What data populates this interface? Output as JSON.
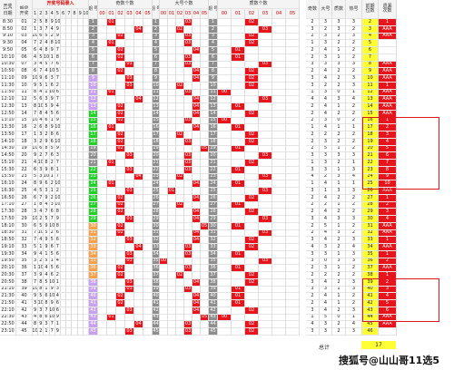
{
  "header": {
    "time_label": "开奖\n时间",
    "period_label": "期号",
    "import_label": "开奖号码录入",
    "col_period": "期\n号",
    "odd_group": "奇数个数",
    "big_group": "大号个数",
    "prime_group": "质数个数",
    "stat_odd": "奇数",
    "stat_big": "大号",
    "stat_prime": "质数",
    "stat_heat": "热号",
    "stat_prev": "前期\n位数",
    "stat_gap": "遗漏\n次数",
    "slot_labels": [
      "00",
      "01",
      "02",
      "03",
      "04",
      "05"
    ],
    "date_label": "日期",
    "date_value": "开奖"
  },
  "rows": [
    {
      "time": "8:30",
      "p": "01",
      "n": [
        2,
        5,
        8,
        9,
        10
      ],
      "per": "1",
      "odd": "01",
      "big": "03",
      "prime": "02",
      "s": [
        2,
        3,
        3,
        3,
        322
      ],
      "last": "2",
      "code": "1"
    },
    {
      "time": "8:50",
      "p": "02",
      "n": [
        1,
        3,
        7,
        4,
        9
      ],
      "per": "2",
      "odd": "04",
      "big": "02",
      "prime": "03",
      "s": [
        3,
        2,
        3,
        2,
        233
      ],
      "last": "3",
      "code": "AAA"
    },
    {
      "time": "9:10",
      "p": "03",
      "n": [
        10,
        6,
        5,
        2,
        9
      ],
      "per": "3",
      "odd": "02",
      "big": "03",
      "prime": "02",
      "s": [
        2,
        3,
        2,
        3,
        323
      ],
      "last": "4",
      "code": "AAA"
    },
    {
      "time": "9:30",
      "p": "04",
      "n": [
        7,
        2,
        4,
        8,
        10
      ],
      "per": "4",
      "odd": "01",
      "big": "03",
      "prime": "02",
      "s": [
        1,
        3,
        2,
        2,
        132
      ],
      "last": "5",
      "code": ""
    },
    {
      "time": "9:50",
      "p": "05",
      "n": [
        6,
        4,
        8,
        9,
        7
      ],
      "per": "5",
      "odd": "02",
      "big": "04",
      "prime": "01",
      "s": [
        2,
        4,
        1,
        2,
        241
      ],
      "last": "6",
      "code": ""
    },
    {
      "time": "10:10",
      "p": "06",
      "n": [
        4,
        5,
        10,
        1,
        8
      ],
      "per": "6",
      "odd": "02",
      "big": "03",
      "prime": "01",
      "s": [
        2,
        3,
        1,
        2,
        231
      ],
      "last": "7",
      "code": ""
    },
    {
      "time": "10:30",
      "p": "07",
      "n": [
        3,
        4,
        5,
        7,
        6
      ],
      "per": "7",
      "odd": "03",
      "big": "03",
      "prime": "03",
      "s": [
        3,
        3,
        3,
        3,
        333
      ],
      "last": "8",
      "code": "AAA"
    },
    {
      "time": "10:50",
      "p": "08",
      "n": [
        6,
        7,
        4,
        10,
        5
      ],
      "per": "8",
      "odd": "02",
      "big": "04",
      "prime": "02",
      "s": [
        2,
        4,
        2,
        2,
        242
      ],
      "last": "9",
      "code": "AAA"
    },
    {
      "time": "11:10",
      "p": "09",
      "n": [
        10,
        9,
        6,
        3,
        7
      ],
      "per": "9",
      "odd": "03",
      "big": "04",
      "prime": "02",
      "s": [
        3,
        4,
        2,
        3,
        342
      ],
      "last": "10",
      "code": "AAA"
    },
    {
      "time": "11:30",
      "p": "10",
      "n": [
        9,
        5,
        1,
        6,
        2
      ],
      "per": "10",
      "odd": "03",
      "big": "02",
      "prime": "02",
      "s": [
        3,
        2,
        2,
        3,
        322
      ],
      "last": "11",
      "code": "1"
    },
    {
      "time": "11:50",
      "p": "11",
      "n": [
        8,
        4,
        1,
        10,
        6
      ],
      "per": "11",
      "odd": "01",
      "big": "03",
      "prime": "00",
      "s": [
        1,
        3,
        0,
        1,
        130
      ],
      "last": "12",
      "code": "AAA"
    },
    {
      "time": "12:10",
      "p": "12",
      "n": [
        5,
        6,
        3,
        9,
        7
      ],
      "per": "12",
      "odd": "04",
      "big": "04",
      "prime": "03",
      "s": [
        4,
        4,
        3,
        4,
        443
      ],
      "last": "13",
      "code": "AAA"
    },
    {
      "time": "12:30",
      "p": "13",
      "n": [
        8,
        10,
        5,
        9,
        4
      ],
      "per": "13",
      "odd": "02",
      "big": "04",
      "prime": "01",
      "s": [
        2,
        4,
        1,
        2,
        241
      ],
      "last": "14",
      "code": "AAA"
    },
    {
      "time": "12:50",
      "p": "14",
      "n": [
        7,
        8,
        4,
        5,
        6
      ],
      "per": "14",
      "odd": "02",
      "big": "04",
      "prime": "02",
      "s": [
        2,
        4,
        2,
        2,
        242
      ],
      "last": "15",
      "code": "AAA"
    },
    {
      "time": "13:10",
      "p": "15",
      "n": [
        10,
        4,
        6,
        1,
        9
      ],
      "per": "15",
      "odd": "02",
      "big": "03",
      "prime": "00",
      "s": [
        2,
        3,
        0,
        2,
        230
      ],
      "last": "16",
      "code": "1"
    },
    {
      "time": "13:30",
      "p": "16",
      "n": [
        2,
        6,
        8,
        9,
        10
      ],
      "per": "16",
      "odd": "01",
      "big": "04",
      "prime": "01",
      "s": [
        1,
        4,
        1,
        1,
        141
      ],
      "last": "17",
      "code": "2"
    },
    {
      "time": "13:50",
      "p": "17",
      "n": [
        1,
        3,
        2,
        8,
        6
      ],
      "per": "17",
      "odd": "02",
      "big": "02",
      "prime": "02",
      "s": [
        2,
        2,
        2,
        2,
        222
      ],
      "last": "18",
      "code": "3"
    },
    {
      "time": "14:10",
      "p": "18",
      "n": [
        3,
        2,
        9,
        6,
        10
      ],
      "per": "18",
      "odd": "02",
      "big": "03",
      "prime": "02",
      "s": [
        2,
        3,
        2,
        2,
        232
      ],
      "last": "19",
      "code": "4"
    },
    {
      "time": "14:30",
      "p": "19",
      "n": [
        10,
        6,
        8,
        5,
        9
      ],
      "per": "19",
      "odd": "02",
      "big": "05",
      "prime": "01",
      "s": [
        2,
        5,
        1,
        2,
        251
      ],
      "last": "20",
      "code": "5"
    },
    {
      "time": "14:50",
      "p": "20",
      "n": [
        9,
        2,
        7,
        6,
        3
      ],
      "per": "20",
      "odd": "03",
      "big": "03",
      "prime": "03",
      "s": [
        3,
        3,
        3,
        3,
        333
      ],
      "last": "21",
      "code": "6"
    },
    {
      "time": "15:10",
      "p": "21",
      "n": [
        4,
        10,
        8,
        2,
        7
      ],
      "per": "21",
      "odd": "01",
      "big": "03",
      "prime": "02",
      "s": [
        1,
        3,
        2,
        1,
        132
      ],
      "last": "22",
      "code": "7"
    },
    {
      "time": "15:30",
      "p": "22",
      "n": [
        6,
        3,
        9,
        8,
        1
      ],
      "per": "22",
      "odd": "03",
      "big": "03",
      "prime": "01",
      "s": [
        3,
        3,
        1,
        3,
        331
      ],
      "last": "23",
      "code": "8"
    },
    {
      "time": "15:50",
      "p": "23",
      "n": [
        5,
        3,
        10,
        1,
        7
      ],
      "per": "23",
      "odd": "04",
      "big": "02",
      "prime": "03",
      "s": [
        4,
        2,
        3,
        4,
        423
      ],
      "last": "24",
      "code": "9"
    },
    {
      "time": "16:10",
      "p": "24",
      "n": [
        8,
        9,
        6,
        2,
        10
      ],
      "per": "24",
      "odd": "01",
      "big": "04",
      "prime": "01",
      "s": [
        1,
        4,
        1,
        1,
        141
      ],
      "last": "25",
      "code": "10"
    },
    {
      "time": "16:30",
      "p": "25",
      "n": [
        4,
        5,
        3,
        1,
        2
      ],
      "per": "25",
      "odd": "03",
      "big": "01",
      "prime": "03",
      "s": [
        3,
        1,
        3,
        3,
        313
      ],
      "last": "26",
      "code": "AAA"
    },
    {
      "time": "16:50",
      "p": "26",
      "n": [
        6,
        7,
        9,
        2,
        10
      ],
      "per": "26",
      "odd": "02",
      "big": "04",
      "prime": "02",
      "s": [
        2,
        4,
        2,
        2,
        242
      ],
      "last": "27",
      "code": "1"
    },
    {
      "time": "17:10",
      "p": "27",
      "n": [
        1,
        8,
        4,
        3,
        10
      ],
      "per": "27",
      "odd": "02",
      "big": "02",
      "prime": "01",
      "s": [
        2,
        2,
        1,
        2,
        221
      ],
      "last": "28",
      "code": "2"
    },
    {
      "time": "17:30",
      "p": "28",
      "n": [
        3,
        4,
        7,
        6,
        8
      ],
      "per": "28",
      "odd": "02",
      "big": "04",
      "prime": "02",
      "s": [
        2,
        4,
        2,
        2,
        242
      ],
      "last": "29",
      "code": "3"
    },
    {
      "time": "17:50",
      "p": "29",
      "n": [
        10,
        2,
        5,
        7,
        9
      ],
      "per": "29",
      "odd": "03",
      "big": "04",
      "prime": "03",
      "s": [
        3,
        4,
        3,
        3,
        343
      ],
      "last": "30",
      "code": "4"
    },
    {
      "time": "18:10",
      "p": "30",
      "n": [
        6,
        5,
        9,
        10,
        8
      ],
      "per": "30",
      "odd": "02",
      "big": "05",
      "prime": "01",
      "s": [
        2,
        5,
        1,
        2,
        251
      ],
      "last": "31",
      "code": "AAA"
    },
    {
      "time": "18:30",
      "p": "31",
      "n": [
        7,
        10,
        5,
        2,
        6
      ],
      "per": "31",
      "odd": "02",
      "big": "04",
      "prime": "03",
      "s": [
        2,
        4,
        3,
        2,
        243
      ],
      "last": "32",
      "code": "AAA"
    },
    {
      "time": "18:50",
      "p": "32",
      "n": [
        7,
        4,
        9,
        5,
        6
      ],
      "per": "32",
      "odd": "03",
      "big": "04",
      "prime": "02",
      "s": [
        3,
        4,
        2,
        3,
        342
      ],
      "last": "33",
      "code": "1"
    },
    {
      "time": "19:10",
      "p": "33",
      "n": [
        5,
        1,
        9,
        6,
        7
      ],
      "per": "33",
      "odd": "04",
      "big": "03",
      "prime": "02",
      "s": [
        4,
        3,
        2,
        4,
        432
      ],
      "last": "34",
      "code": "AAA"
    },
    {
      "time": "19:30",
      "p": "34",
      "n": [
        9,
        4,
        1,
        5,
        6
      ],
      "per": "34",
      "odd": "03",
      "big": "03",
      "prime": "01",
      "s": [
        3,
        3,
        1,
        3,
        331
      ],
      "last": "35",
      "code": "1"
    },
    {
      "time": "19:50",
      "p": "35",
      "n": [
        3,
        2,
        5,
        1,
        4
      ],
      "per": "35",
      "odd": "03",
      "big": "00",
      "prime": "03",
      "s": [
        3,
        0,
        3,
        3,
        303
      ],
      "last": "36",
      "code": "2"
    },
    {
      "time": "20:10",
      "p": "36",
      "n": [
        1,
        10,
        4,
        5,
        6
      ],
      "per": "36",
      "odd": "02",
      "big": "03",
      "prime": "01",
      "s": [
        2,
        3,
        1,
        2,
        231
      ],
      "last": "37",
      "code": "AAA"
    },
    {
      "time": "20:30",
      "p": "37",
      "n": [
        3,
        9,
        4,
        6,
        2
      ],
      "per": "37",
      "odd": "02",
      "big": "02",
      "prime": "02",
      "s": [
        2,
        2,
        2,
        2,
        222
      ],
      "last": "38",
      "code": "1"
    },
    {
      "time": "20:50",
      "p": "38",
      "n": [
        7,
        8,
        5,
        10,
        1
      ],
      "per": "38",
      "odd": "03",
      "big": "04",
      "prime": "02",
      "s": [
        3,
        4,
        2,
        3,
        342
      ],
      "last": "39",
      "code": "2"
    },
    {
      "time": "21:10",
      "p": "39",
      "n": [
        10,
        8,
        1,
        9,
        3
      ],
      "per": "39",
      "odd": "03",
      "big": "03",
      "prime": "01",
      "s": [
        3,
        3,
        1,
        3,
        331
      ],
      "last": "40",
      "code": "3"
    },
    {
      "time": "21:30",
      "p": "40",
      "n": [
        9,
        5,
        6,
        10,
        4
      ],
      "per": "40",
      "odd": "02",
      "big": "04",
      "prime": "01",
      "s": [
        2,
        4,
        1,
        2,
        241
      ],
      "last": "41",
      "code": "4"
    },
    {
      "time": "21:50",
      "p": "41",
      "n": [
        3,
        10,
        8,
        9,
        6
      ],
      "per": "41",
      "odd": "02",
      "big": "04",
      "prime": "01",
      "s": [
        2,
        4,
        1,
        2,
        241
      ],
      "last": "42",
      "code": "5"
    },
    {
      "time": "22:10",
      "p": "42",
      "n": [
        9,
        3,
        7,
        10,
        6
      ],
      "per": "42",
      "odd": "03",
      "big": "04",
      "prime": "02",
      "s": [
        3,
        4,
        2,
        3,
        342
      ],
      "last": "43",
      "code": "6"
    },
    {
      "time": "22:30",
      "p": "43",
      "n": [
        4,
        8,
        6,
        10,
        9
      ],
      "per": "43",
      "odd": "01",
      "big": "05",
      "prime": "00",
      "s": [
        1,
        5,
        0,
        1,
        150
      ],
      "last": "44",
      "code": "AAA"
    },
    {
      "time": "22:50",
      "p": "44",
      "n": [
        8,
        9,
        3,
        7,
        1
      ],
      "per": "44",
      "odd": "04",
      "big": "03",
      "prime": "02",
      "s": [
        4,
        3,
        2,
        4,
        432
      ],
      "last": "45",
      "code": "AAA"
    },
    {
      "time": "23:10",
      "p": "45",
      "n": [
        10,
        2,
        1,
        7,
        9
      ],
      "per": "45",
      "odd": "03",
      "big": "03",
      "prime": "02",
      "s": [
        3,
        3,
        2,
        3,
        332
      ],
      "last": "46",
      "code": ""
    }
  ],
  "summary": {
    "label": "总计",
    "value": "17"
  },
  "watermark": "搜狐号@山山哥11选5",
  "colors": {
    "red": "#e8141c",
    "yellow": "#ffff33",
    "green": "#21d12a",
    "orange": "#f6a24d",
    "purple": "#c9a0f0",
    "gray": "#8e8e8e"
  }
}
